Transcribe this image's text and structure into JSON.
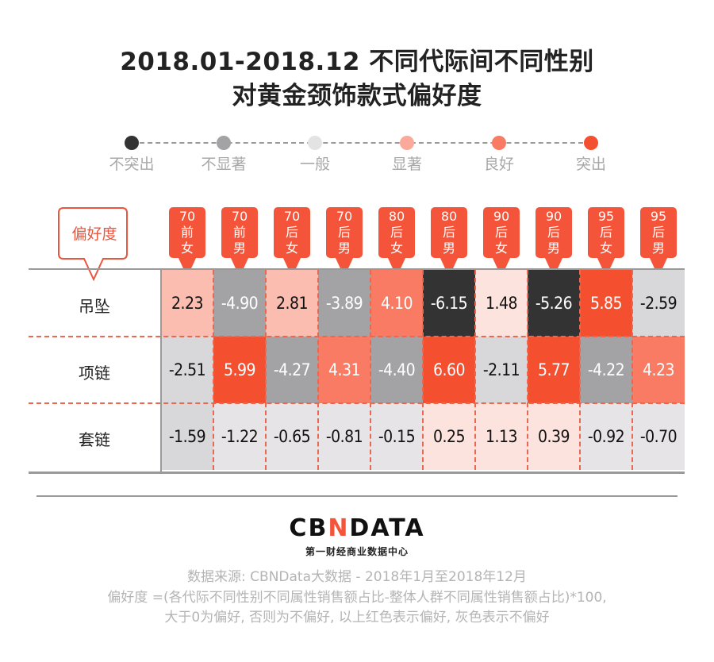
{
  "title": {
    "line1": "2018.01-2018.12 不同代际间不同性别",
    "line2": "对黄金颈饰款式偏好度"
  },
  "legend": [
    {
      "label": "不突出",
      "color": "#333333"
    },
    {
      "label": "不显著",
      "color": "#a3a2a4"
    },
    {
      "label": "一般",
      "color": "#e4e3e4"
    },
    {
      "label": "显著",
      "color": "#fba99a"
    },
    {
      "label": "良好",
      "color": "#f97b63"
    },
    {
      "label": "突出",
      "color": "#f4502f"
    }
  ],
  "callout": "偏好度",
  "logo": {
    "part1": "CB",
    "part2": "N",
    "part3": "DATA",
    "subtitle": "第一财经商业数据中心"
  },
  "footnotes": [
    "数据来源: CBNData大数据 - 2018年1月至2018年12月",
    "偏好度 =(各代际不同性别不同属性销售额占比-整体人群不同属性销售额占比)*100,",
    "大于0为偏好, 否则为不偏好, 以上红色表示偏好, 灰色表示不偏好"
  ],
  "chart_data": {
    "type": "heatmap",
    "title": "2018.01-2018.12 不同代际间不同性别对黄金颈饰款式偏好度",
    "columns": [
      {
        "gen": "70",
        "suffix": "前",
        "gender": "女"
      },
      {
        "gen": "70",
        "suffix": "前",
        "gender": "男"
      },
      {
        "gen": "70",
        "suffix": "后",
        "gender": "女"
      },
      {
        "gen": "70",
        "suffix": "后",
        "gender": "男"
      },
      {
        "gen": "80",
        "suffix": "后",
        "gender": "女"
      },
      {
        "gen": "80",
        "suffix": "后",
        "gender": "男"
      },
      {
        "gen": "90",
        "suffix": "后",
        "gender": "女"
      },
      {
        "gen": "90",
        "suffix": "后",
        "gender": "男"
      },
      {
        "gen": "95",
        "suffix": "后",
        "gender": "女"
      },
      {
        "gen": "95",
        "suffix": "后",
        "gender": "男"
      }
    ],
    "rows": [
      "吊坠",
      "项链",
      "套链"
    ],
    "values": [
      [
        "2.23",
        "-4.90",
        "2.81",
        "-3.89",
        "4.10",
        "-6.15",
        "1.48",
        "-5.26",
        "5.85",
        "-2.59"
      ],
      [
        "-2.51",
        "5.99",
        "-4.27",
        "4.31",
        "-4.40",
        "6.60",
        "-2.11",
        "5.77",
        "-4.22",
        "4.23"
      ],
      [
        "-1.59",
        "-1.22",
        "-0.65",
        "-0.81",
        "-0.15",
        "0.25",
        "1.13",
        "0.39",
        "-0.92",
        "-0.70"
      ]
    ],
    "scale_labels": [
      "不突出",
      "不显著",
      "一般",
      "显著",
      "良好",
      "突出"
    ]
  }
}
